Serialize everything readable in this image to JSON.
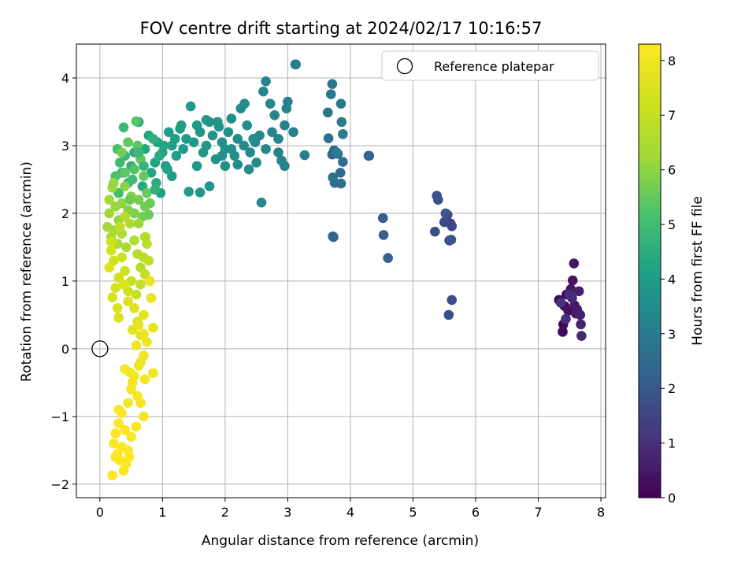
{
  "chart_data": {
    "type": "scatter",
    "title": "FOV centre drift starting at 2024/02/17 10:16:57",
    "xlabel": "Angular distance from reference (arcmin)",
    "ylabel": "Rotation from reference (arcmin)",
    "xlim": [
      -0.375,
      8.075
    ],
    "ylim": [
      -2.2,
      4.5
    ],
    "x_ticks": [
      0,
      1,
      2,
      3,
      4,
      5,
      6,
      7,
      8
    ],
    "y_ticks": [
      -2,
      -1,
      0,
      1,
      2,
      3,
      4
    ],
    "grid": true,
    "colormap": "viridis",
    "legend": {
      "placement": "top-right",
      "entries": [
        "Reference platepar"
      ]
    },
    "reference_point": {
      "name": "Reference platepar",
      "x": 0,
      "y": 0
    },
    "colorbar": {
      "label": "Hours from first FF file",
      "range": [
        0,
        8.3
      ],
      "ticks": [
        0,
        1,
        2,
        3,
        4,
        5,
        6,
        7,
        8
      ]
    },
    "series_note_color_value": "hours",
    "points": [
      [
        7.33,
        0.72,
        0.1
      ],
      [
        7.4,
        0.36,
        0.1
      ],
      [
        7.39,
        0.25,
        0.15
      ],
      [
        7.42,
        0.63,
        0.2
      ],
      [
        7.45,
        0.8,
        0.25
      ],
      [
        7.48,
        0.56,
        0.3
      ],
      [
        7.52,
        0.88,
        0.35
      ],
      [
        7.55,
        1.01,
        0.4
      ],
      [
        7.57,
        1.26,
        0.45
      ],
      [
        7.58,
        0.64,
        0.5
      ],
      [
        7.6,
        0.52,
        0.55
      ],
      [
        7.62,
        0.58,
        0.6
      ],
      [
        7.65,
        0.85,
        0.65
      ],
      [
        7.67,
        0.5,
        0.7
      ],
      [
        7.68,
        0.36,
        0.75
      ],
      [
        7.69,
        0.19,
        0.8
      ],
      [
        7.54,
        0.75,
        0.85
      ],
      [
        7.5,
        0.8,
        0.9
      ],
      [
        7.44,
        0.44,
        0.95
      ],
      [
        7.36,
        0.68,
        1.0
      ],
      [
        5.55,
        1.98,
        1.4
      ],
      [
        5.6,
        1.85,
        1.5
      ],
      [
        5.62,
        1.81,
        1.55
      ],
      [
        5.5,
        1.87,
        1.6
      ],
      [
        5.58,
        1.6,
        1.65
      ],
      [
        5.62,
        0.72,
        1.7
      ],
      [
        5.57,
        0.5,
        1.72
      ],
      [
        5.35,
        1.73,
        1.75
      ],
      [
        5.38,
        2.26,
        1.8
      ],
      [
        5.4,
        2.2,
        1.85
      ],
      [
        5.61,
        1.61,
        1.9
      ],
      [
        5.52,
        2.0,
        1.95
      ],
      [
        4.52,
        1.93,
        2.1
      ],
      [
        4.53,
        1.68,
        2.15
      ],
      [
        4.6,
        1.34,
        2.2
      ],
      [
        4.29,
        2.85,
        2.25
      ],
      [
        4.3,
        2.85,
        2.3
      ],
      [
        3.72,
        1.66,
        2.3
      ],
      [
        3.73,
        1.65,
        2.35
      ],
      [
        3.71,
        2.87,
        2.4
      ],
      [
        3.74,
        2.93,
        2.45
      ],
      [
        3.8,
        2.88,
        2.5
      ],
      [
        3.84,
        2.6,
        2.55
      ],
      [
        3.88,
        2.76,
        2.6
      ],
      [
        3.85,
        2.44,
        2.65
      ],
      [
        3.75,
        2.45,
        2.7
      ],
      [
        3.72,
        2.53,
        2.75
      ],
      [
        3.65,
        3.11,
        2.8
      ],
      [
        3.64,
        3.49,
        2.85
      ],
      [
        3.71,
        3.91,
        2.85
      ],
      [
        3.69,
        3.76,
        2.9
      ],
      [
        3.85,
        3.62,
        2.95
      ],
      [
        3.86,
        3.35,
        3.0
      ],
      [
        3.88,
        3.17,
        3.0
      ],
      [
        3.78,
        2.9,
        3.05
      ],
      [
        3.27,
        2.86,
        3.05
      ],
      [
        3.12,
        4.2,
        3.1
      ],
      [
        3.13,
        4.2,
        3.1
      ],
      [
        3.09,
        3.2,
        3.15
      ],
      [
        2.98,
        3.55,
        3.15
      ],
      [
        2.95,
        3.3,
        3.2
      ],
      [
        2.9,
        2.78,
        3.2
      ],
      [
        2.85,
        3.1,
        3.25
      ],
      [
        2.79,
        3.45,
        3.25
      ],
      [
        2.72,
        3.62,
        3.3
      ],
      [
        2.65,
        3.95,
        3.3
      ],
      [
        2.61,
        3.8,
        3.35
      ],
      [
        2.55,
        3.15,
        3.35
      ],
      [
        2.58,
        2.16,
        3.4
      ],
      [
        2.48,
        3.05,
        3.4
      ],
      [
        2.4,
        2.9,
        3.45
      ],
      [
        2.35,
        3.3,
        3.45
      ],
      [
        2.31,
        3.62,
        3.5
      ],
      [
        2.25,
        3.55,
        3.5
      ],
      [
        2.2,
        3.1,
        3.55
      ],
      [
        2.15,
        2.85,
        3.55
      ],
      [
        2.1,
        3.4,
        3.6
      ],
      [
        2.05,
        3.2,
        3.6
      ],
      [
        2.0,
        2.95,
        3.65
      ],
      [
        1.95,
        3.05,
        3.65
      ],
      [
        1.9,
        3.28,
        3.7
      ],
      [
        1.85,
        2.8,
        3.7
      ],
      [
        1.8,
        3.15,
        3.75
      ],
      [
        1.75,
        3.35,
        3.75
      ],
      [
        1.7,
        3.0,
        3.8
      ],
      [
        1.65,
        2.9,
        3.8
      ],
      [
        1.6,
        3.2,
        3.85
      ],
      [
        1.55,
        2.7,
        3.85
      ],
      [
        1.5,
        3.05,
        3.9
      ],
      [
        1.45,
        3.58,
        3.9
      ],
      [
        1.42,
        2.32,
        3.95
      ],
      [
        1.38,
        3.1,
        3.95
      ],
      [
        1.33,
        2.95,
        4.0
      ],
      [
        1.28,
        3.25,
        4.0
      ],
      [
        1.22,
        2.85,
        4.05
      ],
      [
        1.15,
        3.0,
        4.05
      ],
      [
        1.1,
        3.2,
        4.1
      ],
      [
        1.05,
        2.7,
        4.1
      ],
      [
        1.0,
        2.9,
        4.15
      ],
      [
        0.97,
        2.3,
        4.15
      ],
      [
        0.92,
        3.05,
        4.2
      ],
      [
        0.88,
        2.75,
        4.2
      ],
      [
        0.82,
        2.6,
        4.25
      ],
      [
        0.78,
        3.15,
        4.3
      ],
      [
        0.72,
        2.95,
        4.35
      ],
      [
        0.68,
        2.4,
        4.4
      ],
      [
        0.62,
        3.35,
        4.45
      ],
      [
        2.45,
        3.1,
        3.5
      ],
      [
        2.65,
        2.95,
        3.3
      ],
      [
        2.75,
        3.2,
        3.25
      ],
      [
        2.85,
        2.9,
        3.2
      ],
      [
        3.0,
        3.65,
        3.15
      ],
      [
        1.6,
        2.31,
        3.8
      ],
      [
        1.75,
        2.4,
        3.75
      ],
      [
        2.0,
        2.7,
        3.65
      ],
      [
        2.2,
        2.72,
        3.55
      ],
      [
        2.38,
        2.65,
        3.5
      ],
      [
        1.88,
        3.35,
        3.7
      ],
      [
        1.7,
        3.38,
        3.8
      ],
      [
        1.55,
        3.3,
        3.85
      ],
      [
        1.3,
        3.3,
        4.0
      ],
      [
        1.15,
        2.55,
        4.05
      ],
      [
        2.95,
        2.7,
        3.2
      ],
      [
        2.5,
        2.75,
        3.4
      ],
      [
        2.3,
        3.0,
        3.5
      ],
      [
        2.1,
        2.95,
        3.6
      ],
      [
        1.95,
        2.85,
        3.65
      ],
      [
        0.55,
        2.9,
        4.5
      ],
      [
        0.5,
        2.7,
        4.6
      ],
      [
        0.45,
        2.45,
        4.7
      ],
      [
        0.4,
        2.85,
        4.8
      ],
      [
        0.38,
        3.27,
        4.85
      ],
      [
        0.35,
        2.6,
        4.9
      ],
      [
        0.32,
        2.75,
        5.0
      ],
      [
        0.3,
        2.3,
        5.05
      ],
      [
        0.28,
        2.95,
        5.1
      ],
      [
        0.25,
        2.55,
        5.2
      ],
      [
        0.58,
        3.36,
        5.3
      ],
      [
        0.6,
        3.0,
        5.4
      ],
      [
        0.65,
        2.8,
        5.45
      ],
      [
        0.7,
        2.55,
        5.5
      ],
      [
        0.75,
        2.3,
        5.55
      ],
      [
        0.8,
        2.15,
        5.6
      ],
      [
        0.72,
        2.1,
        5.65
      ],
      [
        0.68,
        1.95,
        5.7
      ],
      [
        0.62,
        2.2,
        5.75
      ],
      [
        0.55,
        2.0,
        5.8
      ],
      [
        0.5,
        2.25,
        5.85
      ],
      [
        0.45,
        2.05,
        5.9
      ],
      [
        0.4,
        2.4,
        5.95
      ],
      [
        0.35,
        2.15,
        6.0
      ],
      [
        0.3,
        1.9,
        6.05
      ],
      [
        0.25,
        2.1,
        6.1
      ],
      [
        0.2,
        2.38,
        6.15
      ],
      [
        0.15,
        2.0,
        6.2
      ],
      [
        0.12,
        1.8,
        6.25
      ],
      [
        0.18,
        1.65,
        6.3
      ],
      [
        0.22,
        1.75,
        6.35
      ],
      [
        0.28,
        1.55,
        6.4
      ],
      [
        0.35,
        1.7,
        6.45
      ],
      [
        0.42,
        1.5,
        6.5
      ],
      [
        0.48,
        1.85,
        6.55
      ],
      [
        0.55,
        1.6,
        6.6
      ],
      [
        0.6,
        1.4,
        6.65
      ],
      [
        0.65,
        1.2,
        6.7
      ],
      [
        0.7,
        1.35,
        6.75
      ],
      [
        0.73,
        1.65,
        6.8
      ],
      [
        0.75,
        1.55,
        6.85
      ],
      [
        0.78,
        1.3,
        6.9
      ],
      [
        0.72,
        1.1,
        6.95
      ],
      [
        0.65,
        0.95,
        7.0
      ],
      [
        0.58,
        0.8,
        7.05
      ],
      [
        0.5,
        1.0,
        7.1
      ],
      [
        0.45,
        0.85,
        7.15
      ],
      [
        0.4,
        1.15,
        7.2
      ],
      [
        0.35,
        1.35,
        7.25
      ],
      [
        0.3,
        1.05,
        7.3
      ],
      [
        0.25,
        0.9,
        7.35
      ],
      [
        0.2,
        0.76,
        7.4
      ],
      [
        0.15,
        1.2,
        7.45
      ],
      [
        0.3,
        0.46,
        7.5
      ],
      [
        0.55,
        0.6,
        7.55
      ],
      [
        0.6,
        0.4,
        7.6
      ],
      [
        0.65,
        0.2,
        7.65
      ],
      [
        0.7,
        0.5,
        7.7
      ],
      [
        0.85,
        0.31,
        7.75
      ],
      [
        0.82,
        0.75,
        7.8
      ],
      [
        0.8,
        1.0,
        7.85
      ],
      [
        0.75,
        0.1,
        7.9
      ],
      [
        0.7,
        -0.1,
        7.95
      ],
      [
        0.62,
        -0.25,
        8.0
      ],
      [
        0.58,
        0.05,
        8.0
      ],
      [
        0.55,
        -0.4,
        8.05
      ],
      [
        0.85,
        -0.36,
        8.05
      ],
      [
        0.72,
        -0.45,
        8.1
      ],
      [
        0.5,
        -0.6,
        8.1
      ],
      [
        0.45,
        -0.8,
        8.15
      ],
      [
        0.4,
        -0.3,
        8.15
      ],
      [
        0.35,
        -0.95,
        8.2
      ],
      [
        0.3,
        -1.1,
        8.2
      ],
      [
        0.25,
        -1.25,
        8.25
      ],
      [
        0.22,
        -1.4,
        8.25
      ],
      [
        0.28,
        -1.55,
        8.3
      ],
      [
        0.32,
        -1.65,
        8.3
      ],
      [
        0.38,
        -1.8,
        8.3
      ],
      [
        0.42,
        -1.7,
        8.3
      ],
      [
        0.2,
        -1.87,
        8.3
      ],
      [
        0.7,
        -1.0,
        8.1
      ],
      [
        0.65,
        -0.8,
        8.1
      ],
      [
        0.58,
        -1.15,
        8.2
      ],
      [
        0.5,
        -1.3,
        8.2
      ],
      [
        0.45,
        -1.5,
        8.25
      ],
      [
        0.3,
        -0.9,
        8.2
      ],
      [
        0.4,
        -1.2,
        8.25
      ],
      [
        0.35,
        -1.45,
        8.3
      ],
      [
        0.25,
        -1.6,
        8.3
      ],
      [
        0.47,
        -1.6,
        8.3
      ],
      [
        0.52,
        -0.5,
        8.1
      ],
      [
        0.6,
        -0.7,
        8.1
      ],
      [
        0.48,
        -0.35,
        8.05
      ],
      [
        0.65,
        -0.2,
        8.0
      ],
      [
        0.7,
        0.22,
        7.9
      ],
      [
        0.62,
        0.35,
        7.8
      ],
      [
        0.52,
        0.28,
        7.7
      ],
      [
        0.45,
        0.7,
        7.6
      ],
      [
        0.38,
        0.95,
        7.5
      ],
      [
        0.28,
        0.6,
        7.45
      ],
      [
        0.18,
        1.45,
        7.35
      ],
      [
        0.22,
        1.3,
        7.3
      ],
      [
        0.18,
        1.58,
        7.2
      ],
      [
        0.32,
        1.8,
        6.9
      ],
      [
        0.4,
        1.95,
        6.7
      ],
      [
        0.15,
        2.2,
        6.3
      ],
      [
        0.22,
        2.45,
        6.1
      ],
      [
        0.35,
        2.9,
        5.7
      ],
      [
        0.45,
        3.05,
        5.5
      ],
      [
        0.55,
        2.65,
        5.3
      ],
      [
        0.85,
        3.1,
        4.6
      ],
      [
        0.95,
        2.85,
        4.4
      ],
      [
        1.02,
        3.0,
        4.3
      ],
      [
        1.08,
        2.65,
        4.2
      ],
      [
        1.2,
        3.1,
        4.1
      ],
      [
        0.9,
        2.45,
        4.5
      ],
      [
        0.78,
        1.98,
        5.6
      ],
      [
        0.72,
        1.65,
        6.6
      ],
      [
        0.62,
        1.85,
        6.2
      ],
      [
        0.52,
        2.5,
        5.0
      ],
      [
        0.88,
        2.35,
        4.6
      ],
      [
        0.7,
        2.7,
        4.8
      ],
      [
        0.62,
        2.9,
        4.9
      ],
      [
        0.48,
        2.2,
        5.6
      ],
      [
        0.4,
        2.6,
        5.4
      ]
    ]
  }
}
